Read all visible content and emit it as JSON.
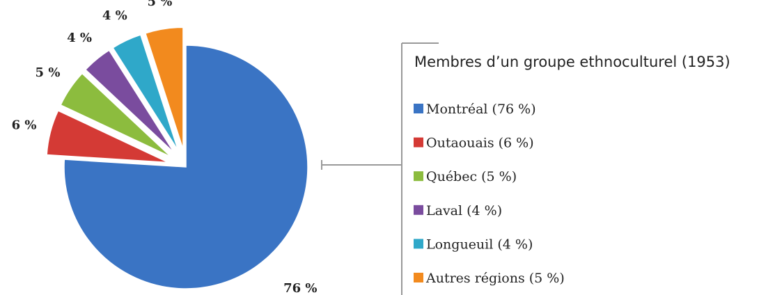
{
  "chart_data": {
    "type": "pie",
    "title": "Membres d’un groupe ethnoculturel (1953)",
    "categories": [
      "Montréal (76 %)",
      "Outaouais (6 %)",
      "Québec (5 %)",
      "Laval (4 %)",
      "Longueuil (4 %)",
      "Autres régions (5 %)"
    ],
    "values": [
      76,
      6,
      5,
      4,
      4,
      5
    ],
    "value_labels": [
      "76 %",
      "6 %",
      "5 %",
      "4 %",
      "4 %",
      "5 %"
    ],
    "colors": [
      "#3a74c4",
      "#d43a35",
      "#8cbc3e",
      "#7a4c9e",
      "#2fa8c9",
      "#f28a1e"
    ],
    "legend": "right"
  }
}
